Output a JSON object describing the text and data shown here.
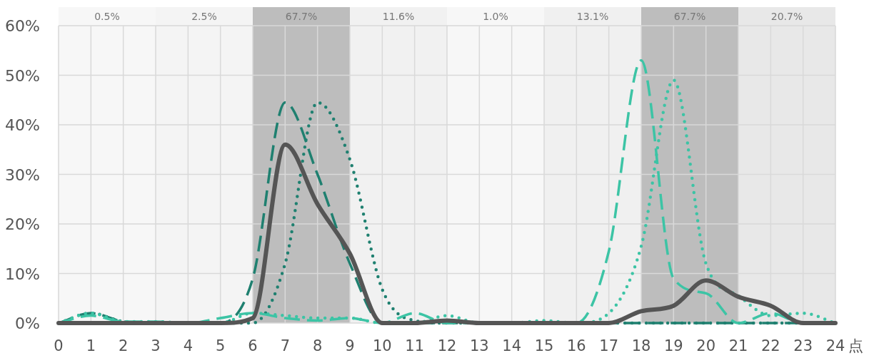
{
  "chart_data": {
    "type": "line",
    "xlabel": "点",
    "x": [
      0,
      1,
      2,
      3,
      4,
      5,
      6,
      7,
      8,
      9,
      10,
      11,
      12,
      13,
      14,
      15,
      16,
      17,
      18,
      19,
      20,
      21,
      22,
      23,
      24
    ],
    "xlim": [
      0,
      24
    ],
    "xticks": [
      0,
      1,
      2,
      3,
      4,
      5,
      6,
      7,
      8,
      9,
      10,
      11,
      12,
      13,
      14,
      15,
      16,
      17,
      18,
      19,
      20,
      21,
      22,
      23,
      24
    ],
    "ylim": [
      0,
      60
    ],
    "yticks": [
      {
        "value": 0,
        "label": "0%"
      },
      {
        "value": 10,
        "label": "10%"
      },
      {
        "value": 20,
        "label": "20%"
      },
      {
        "value": 30,
        "label": "30%"
      },
      {
        "value": 40,
        "label": "40%"
      },
      {
        "value": 50,
        "label": "50%"
      },
      {
        "value": 60,
        "label": "60%"
      }
    ],
    "grid": true,
    "bands": [
      {
        "axis": "x",
        "from": 0,
        "to": 3,
        "label": "0.5%",
        "color": "#f7f7f7"
      },
      {
        "axis": "x",
        "from": 3,
        "to": 6,
        "label": "2.5%",
        "color": "#f4f4f4"
      },
      {
        "axis": "x",
        "from": 6,
        "to": 9,
        "label": "67.7%",
        "color": "#bdbdbd"
      },
      {
        "axis": "x",
        "from": 9,
        "to": 12,
        "label": "11.6%",
        "color": "#f1f1f1"
      },
      {
        "axis": "x",
        "from": 12,
        "to": 15,
        "label": "1.0%",
        "color": "#f7f7f7"
      },
      {
        "axis": "x",
        "from": 15,
        "to": 18,
        "label": "13.1%",
        "color": "#f0f0f0"
      },
      {
        "axis": "x",
        "from": 18,
        "to": 21,
        "label": "67.7%",
        "color": "#bdbdbd"
      },
      {
        "axis": "x",
        "from": 21,
        "to": 24,
        "label": "20.7%",
        "color": "#e8e8e8"
      }
    ],
    "series": [
      {
        "color": "#1f8070",
        "line_style": "dashed",
        "values": [
          0,
          2,
          0.3,
          0,
          0,
          0,
          9,
          44.5,
          30,
          12,
          0,
          0,
          0,
          0,
          0,
          0,
          0,
          0,
          0,
          0,
          0,
          0,
          0,
          0,
          0
        ]
      },
      {
        "color": "#1f8070",
        "line_style": "dotted",
        "values": [
          0,
          2,
          0.3,
          0,
          0,
          0,
          0,
          12,
          44.5,
          33,
          6.8,
          0.5,
          0,
          0,
          0,
          0,
          0,
          0,
          0,
          0,
          0,
          0,
          0,
          0,
          0
        ]
      },
      {
        "color": "#3cc4a5",
        "line_style": "dashed",
        "values": [
          0,
          1.5,
          0.3,
          0.3,
          0,
          1,
          2,
          1,
          0.5,
          1,
          0,
          2,
          0,
          0,
          0,
          0,
          0,
          14.5,
          53,
          9,
          6,
          0,
          2,
          0,
          0
        ]
      },
      {
        "color": "#3cc4a5",
        "line_style": "dotted",
        "values": [
          0,
          2,
          0.3,
          0.3,
          0,
          0,
          2,
          1.5,
          1,
          1,
          0,
          0,
          1.5,
          0,
          0,
          0.5,
          0,
          2,
          15.5,
          49,
          12,
          5.5,
          1.5,
          2,
          0
        ]
      },
      {
        "color": "#555555",
        "line_style": "solid",
        "values": [
          0,
          0,
          0,
          0,
          0,
          0,
          1,
          36,
          24,
          14,
          0,
          0,
          0.5,
          0,
          0,
          0,
          0,
          0,
          2.4,
          3.5,
          8.6,
          5.3,
          3.5,
          0,
          0
        ]
      }
    ]
  }
}
